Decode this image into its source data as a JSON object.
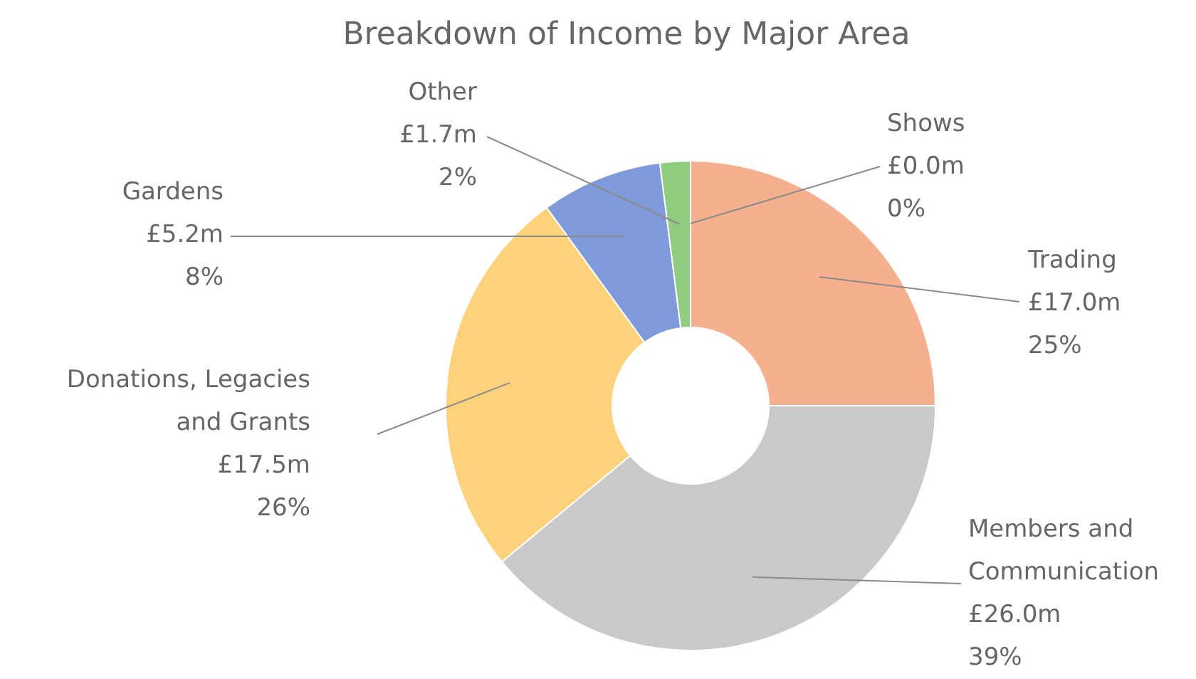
{
  "chart_data": {
    "type": "donut",
    "title": "Breakdown of Income by Major Area",
    "categories": [
      "Shows",
      "Trading",
      "Members and Communication",
      "Donations, Legacies and Grants",
      "Gardens",
      "Other"
    ],
    "values": [
      0,
      25,
      39,
      26,
      8,
      2
    ],
    "value_labels": [
      "£0.0m\n0%",
      "£17.0m\n25%",
      "£26.0m\n39%",
      "£17.5m\n26%",
      "£5.2m\n8%",
      "£1.7m\n2%"
    ],
    "colors": [
      "#6a8ad0",
      "#f4b08f",
      "#c9c9c9",
      "#fdd27a",
      "#7f9ad8",
      "#90cc80"
    ],
    "legend": false
  }
}
